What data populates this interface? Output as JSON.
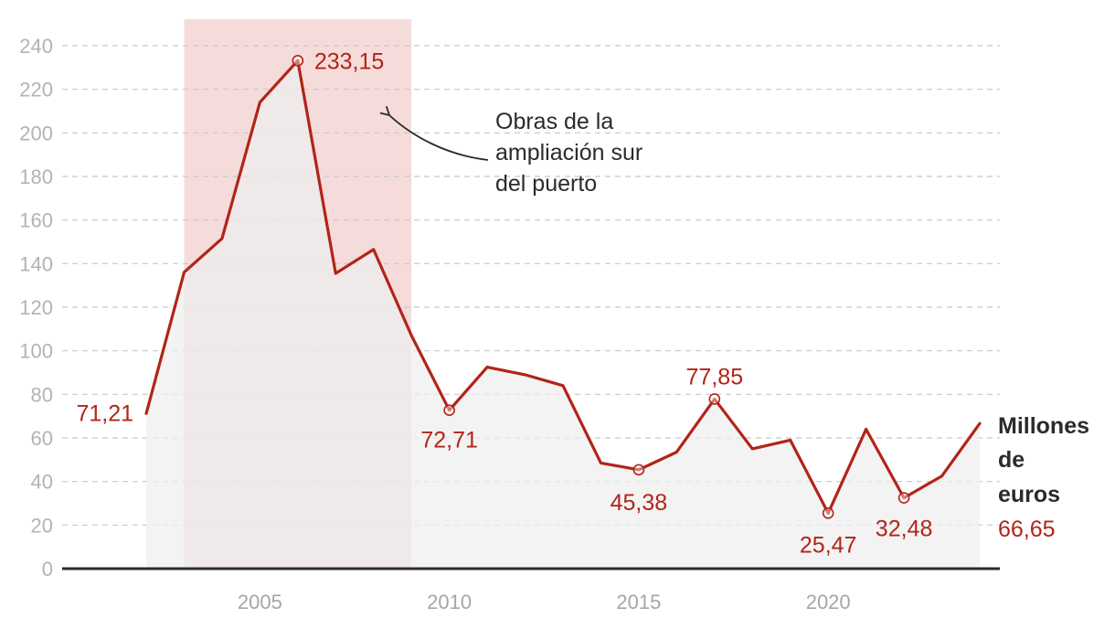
{
  "chart_data": {
    "type": "area",
    "x": [
      2002,
      2003,
      2004,
      2005,
      2006,
      2007,
      2008,
      2009,
      2010,
      2011,
      2012,
      2013,
      2014,
      2015,
      2016,
      2017,
      2018,
      2019,
      2020,
      2021,
      2022,
      2023,
      2024
    ],
    "values": [
      71.21,
      136,
      151.5,
      214,
      233.15,
      135.5,
      146.5,
      107,
      72.71,
      92.5,
      89,
      84,
      48.5,
      45.38,
      53.5,
      77.85,
      55,
      59,
      25.47,
      64,
      32.48,
      42.5,
      66.65
    ],
    "ylim": [
      0,
      240
    ],
    "yticks": [
      "0",
      "20",
      "40",
      "60",
      "80",
      "100",
      "120",
      "140",
      "160",
      "180",
      "200",
      "220",
      "240"
    ],
    "xticks": [
      {
        "value": 2005,
        "label": "2005"
      },
      {
        "value": 2010,
        "label": "2010"
      },
      {
        "value": 2015,
        "label": "2015"
      },
      {
        "value": 2020,
        "label": "2020"
      }
    ],
    "unit_label": [
      "Millones",
      "de",
      "euros"
    ],
    "highlight_band": {
      "from": 2003,
      "to": 2009
    },
    "annotation": [
      "Obras de la",
      "ampliación sur",
      "del puerto"
    ],
    "data_labels": [
      {
        "x": 2002,
        "text": "71,21",
        "marker": false
      },
      {
        "x": 2006,
        "text": "233,15",
        "marker": true
      },
      {
        "x": 2010,
        "text": "72,71",
        "marker": true
      },
      {
        "x": 2015,
        "text": "45,38",
        "marker": true
      },
      {
        "x": 2017,
        "text": "77,85",
        "marker": true
      },
      {
        "x": 2020,
        "text": "25,47",
        "marker": true
      },
      {
        "x": 2022,
        "text": "32,48",
        "marker": true
      },
      {
        "x": 2024,
        "text": "66,65",
        "marker": false
      }
    ],
    "grid": true,
    "colors": {
      "line": "#b22418",
      "area": "#efefef",
      "band": "#f5dcda",
      "grid": "#c8c8c8",
      "axis": "#2b2b2b"
    }
  }
}
